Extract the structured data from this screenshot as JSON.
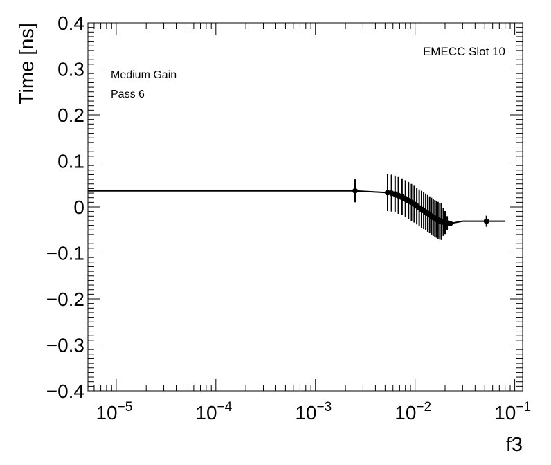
{
  "chart_data": {
    "type": "scatter",
    "title": "",
    "xlabel": "f3",
    "ylabel": "Time [ns]",
    "x_scale": "log",
    "xlim": [
      5.2e-06,
      0.12
    ],
    "ylim": [
      -0.4,
      0.4
    ],
    "x_tick_values": [
      1e-05,
      0.0001,
      0.001,
      0.01,
      0.1
    ],
    "x_tick_labels": [
      {
        "base": "10",
        "exp": "−5"
      },
      {
        "base": "10",
        "exp": "−4"
      },
      {
        "base": "10",
        "exp": "−3"
      },
      {
        "base": "10",
        "exp": "−2"
      },
      {
        "base": "10",
        "exp": "−1"
      }
    ],
    "y_ticks": [
      -0.4,
      -0.3,
      -0.2,
      -0.1,
      0,
      0.1,
      0.2,
      0.3,
      0.4
    ],
    "y_tick_labels": [
      "−0.4",
      "−0.3",
      "−0.2",
      "−0.1",
      "0",
      "0.1",
      "0.2",
      "0.3",
      "0.4"
    ],
    "annotations": [
      "EMECC Slot 10",
      "Medium Gain",
      "Pass 6"
    ],
    "grid": false,
    "legend": "none",
    "series": [
      {
        "points": [
          {
            "x": 0.0025,
            "y": 0.035,
            "err": 0.025
          },
          {
            "x": 0.0053,
            "y": 0.031,
            "err": 0.04
          },
          {
            "x": 0.0058,
            "y": 0.03,
            "err": 0.04
          },
          {
            "x": 0.0063,
            "y": 0.028,
            "err": 0.04
          },
          {
            "x": 0.0068,
            "y": 0.025,
            "err": 0.04
          },
          {
            "x": 0.0074,
            "y": 0.022,
            "err": 0.04
          },
          {
            "x": 0.008,
            "y": 0.018,
            "err": 0.04
          },
          {
            "x": 0.0086,
            "y": 0.014,
            "err": 0.04
          },
          {
            "x": 0.0092,
            "y": 0.01,
            "err": 0.04
          },
          {
            "x": 0.0098,
            "y": 0.006,
            "err": 0.04
          },
          {
            "x": 0.0104,
            "y": 0.002,
            "err": 0.04
          },
          {
            "x": 0.011,
            "y": -0.002,
            "err": 0.04
          },
          {
            "x": 0.0116,
            "y": -0.005,
            "err": 0.04
          },
          {
            "x": 0.0122,
            "y": -0.008,
            "err": 0.04
          },
          {
            "x": 0.0128,
            "y": -0.011,
            "err": 0.04
          },
          {
            "x": 0.0134,
            "y": -0.014,
            "err": 0.04
          },
          {
            "x": 0.014,
            "y": -0.017,
            "err": 0.04
          },
          {
            "x": 0.0146,
            "y": -0.02,
            "err": 0.04
          },
          {
            "x": 0.0152,
            "y": -0.023,
            "err": 0.04
          },
          {
            "x": 0.0158,
            "y": -0.025,
            "err": 0.04
          },
          {
            "x": 0.0164,
            "y": -0.027,
            "err": 0.04
          },
          {
            "x": 0.017,
            "y": -0.029,
            "err": 0.04
          },
          {
            "x": 0.0177,
            "y": -0.031,
            "err": 0.04
          },
          {
            "x": 0.0184,
            "y": -0.032,
            "err": 0.04
          },
          {
            "x": 0.0192,
            "y": -0.033,
            "err": 0.03
          },
          {
            "x": 0.02,
            "y": -0.034,
            "err": 0.025
          },
          {
            "x": 0.021,
            "y": -0.035,
            "err": 0.015
          },
          {
            "x": 0.0225,
            "y": -0.036,
            "err": 0.005
          },
          {
            "x": 0.052,
            "y": -0.031,
            "err": 0.012
          }
        ],
        "step_line": [
          {
            "x": 5.2e-06,
            "y": 0.035
          },
          {
            "x": 0.0025,
            "y": 0.035
          },
          {
            "x": 0.0053,
            "y": 0.031
          },
          {
            "x": 0.0225,
            "y": -0.036
          },
          {
            "x": 0.03,
            "y": -0.031
          },
          {
            "x": 0.08,
            "y": -0.031
          }
        ]
      }
    ]
  }
}
